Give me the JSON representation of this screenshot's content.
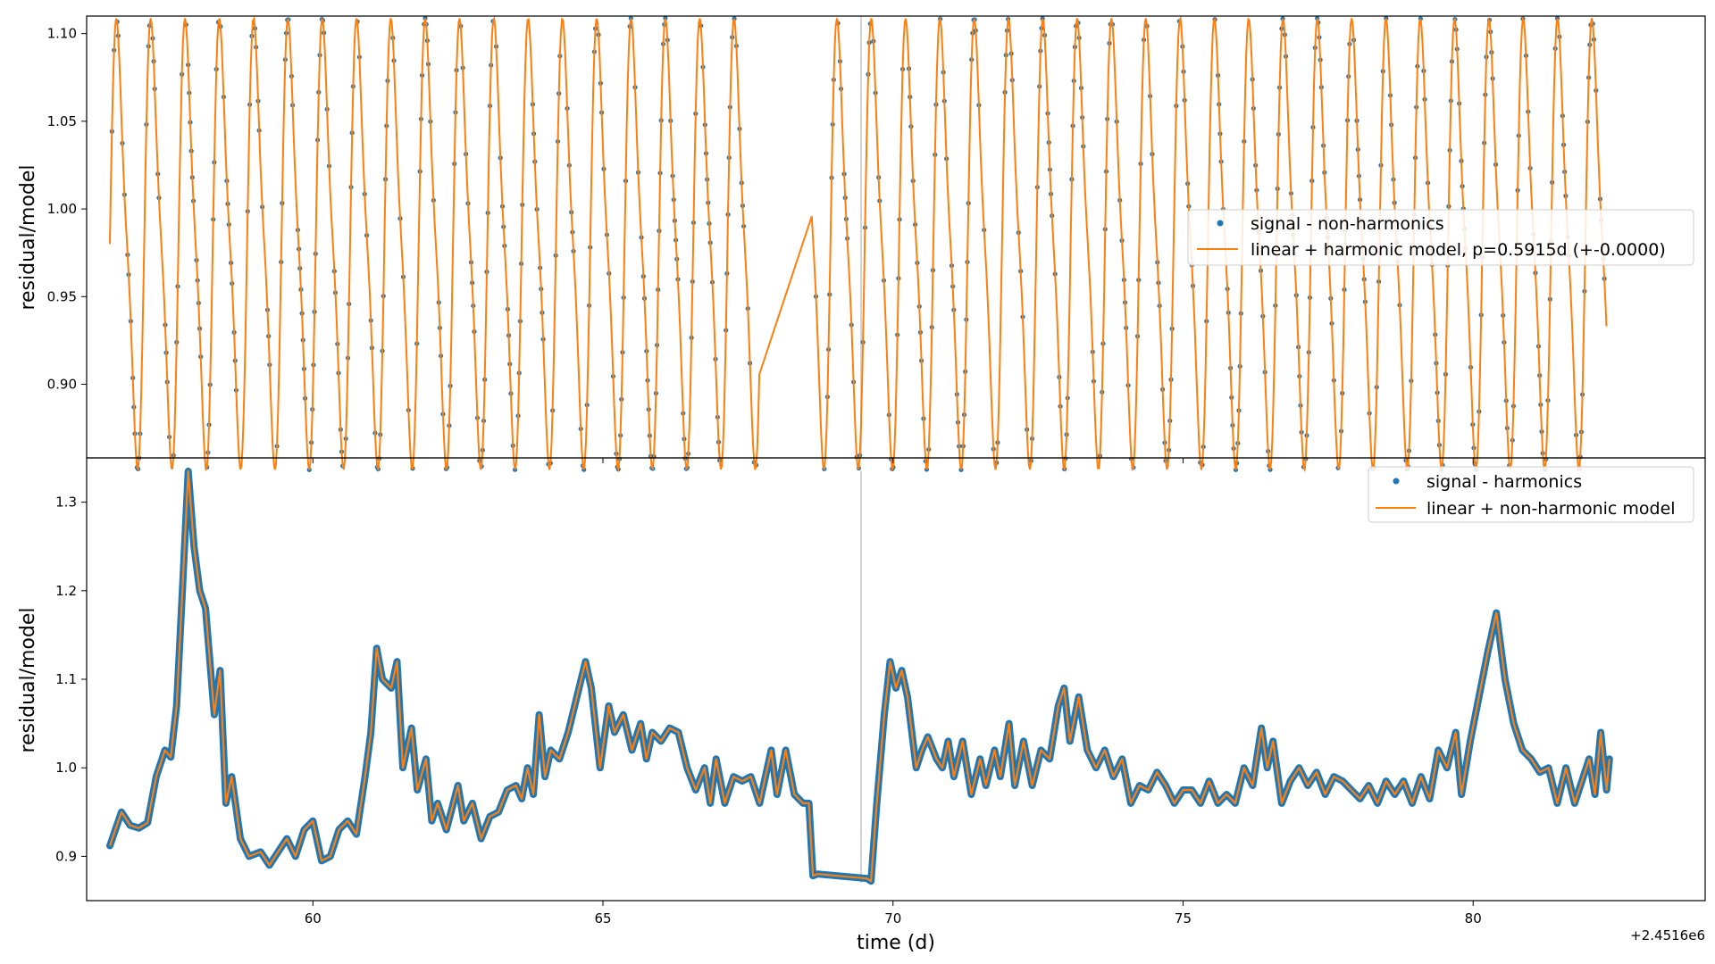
{
  "figure": {
    "offset_label": "+2.4516e6",
    "xlabel": "time (d)"
  },
  "colors": {
    "signal": "#1f77b4",
    "model": "#ff7f0e",
    "vline": "#d3d3d3",
    "axes": "#000000"
  },
  "chart_data": [
    {
      "type": "scatter",
      "panel": "top",
      "ylabel": "residual/model",
      "xlim": [
        56.1,
        84.0
      ],
      "ylim": [
        0.858,
        1.11
      ],
      "yticks": [
        0.9,
        0.95,
        1.0,
        1.05,
        1.1
      ],
      "ytick_labels": [
        "0.90",
        "0.95",
        "1.00",
        "1.05",
        "1.10"
      ],
      "xticks": [
        60,
        65,
        70,
        75,
        80
      ],
      "show_xtick_labels": false,
      "grid": false,
      "legend_position": "center-right",
      "vline_x": 69.45,
      "segments": [
        [
          56.5,
          67.7
        ],
        [
          68.6,
          82.3
        ]
      ],
      "period": 0.5915,
      "mean": 0.98,
      "amplitude": 0.12,
      "series": [
        {
          "name": "signal - non-harmonics",
          "kind": "markers"
        },
        {
          "name": "linear + harmonic model, p=0.5915d (+-0.0000)",
          "kind": "line"
        }
      ]
    },
    {
      "type": "line",
      "panel": "bottom",
      "ylabel": "residual/model",
      "xlim": [
        56.1,
        84.0
      ],
      "ylim": [
        0.85,
        1.35
      ],
      "yticks": [
        0.9,
        1.0,
        1.1,
        1.2,
        1.3
      ],
      "ytick_labels": [
        "0.9",
        "1.0",
        "1.1",
        "1.2",
        "1.3"
      ],
      "xticks": [
        60,
        65,
        70,
        75,
        80
      ],
      "xtick_labels": [
        "60",
        "65",
        "70",
        "75",
        "80"
      ],
      "grid": false,
      "legend_position": "top-right",
      "vline_x": 69.45,
      "series": [
        {
          "name": "signal - harmonics",
          "kind": "markers"
        },
        {
          "name": "linear + non-harmonic model",
          "kind": "line"
        }
      ],
      "points": [
        [
          56.5,
          0.912
        ],
        [
          56.7,
          0.95
        ],
        [
          56.85,
          0.935
        ],
        [
          57.0,
          0.932
        ],
        [
          57.15,
          0.938
        ],
        [
          57.3,
          0.99
        ],
        [
          57.45,
          1.02
        ],
        [
          57.55,
          1.012
        ],
        [
          57.65,
          1.07
        ],
        [
          57.75,
          1.2
        ],
        [
          57.85,
          1.335
        ],
        [
          57.95,
          1.25
        ],
        [
          58.05,
          1.2
        ],
        [
          58.15,
          1.18
        ],
        [
          58.3,
          1.06
        ],
        [
          58.4,
          1.11
        ],
        [
          58.5,
          0.96
        ],
        [
          58.6,
          0.99
        ],
        [
          58.75,
          0.92
        ],
        [
          58.9,
          0.9
        ],
        [
          59.1,
          0.905
        ],
        [
          59.25,
          0.89
        ],
        [
          59.4,
          0.905
        ],
        [
          59.55,
          0.92
        ],
        [
          59.7,
          0.9
        ],
        [
          59.85,
          0.93
        ],
        [
          60.0,
          0.94
        ],
        [
          60.15,
          0.895
        ],
        [
          60.3,
          0.9
        ],
        [
          60.45,
          0.93
        ],
        [
          60.6,
          0.94
        ],
        [
          60.75,
          0.925
        ],
        [
          60.9,
          0.99
        ],
        [
          61.0,
          1.04
        ],
        [
          61.1,
          1.135
        ],
        [
          61.2,
          1.1
        ],
        [
          61.35,
          1.09
        ],
        [
          61.45,
          1.12
        ],
        [
          61.55,
          1.0
        ],
        [
          61.7,
          1.045
        ],
        [
          61.8,
          0.975
        ],
        [
          61.95,
          1.01
        ],
        [
          62.05,
          0.94
        ],
        [
          62.15,
          0.96
        ],
        [
          62.3,
          0.93
        ],
        [
          62.5,
          0.98
        ],
        [
          62.6,
          0.94
        ],
        [
          62.75,
          0.96
        ],
        [
          62.9,
          0.92
        ],
        [
          63.05,
          0.945
        ],
        [
          63.2,
          0.95
        ],
        [
          63.35,
          0.975
        ],
        [
          63.5,
          0.98
        ],
        [
          63.6,
          0.965
        ],
        [
          63.7,
          1.0
        ],
        [
          63.8,
          0.97
        ],
        [
          63.9,
          1.06
        ],
        [
          64.0,
          0.99
        ],
        [
          64.1,
          1.02
        ],
        [
          64.25,
          1.01
        ],
        [
          64.4,
          1.04
        ],
        [
          64.55,
          1.08
        ],
        [
          64.7,
          1.12
        ],
        [
          64.8,
          1.09
        ],
        [
          64.95,
          1.0
        ],
        [
          65.1,
          1.07
        ],
        [
          65.2,
          1.04
        ],
        [
          65.35,
          1.06
        ],
        [
          65.5,
          1.02
        ],
        [
          65.65,
          1.05
        ],
        [
          65.75,
          1.01
        ],
        [
          65.85,
          1.04
        ],
        [
          66.0,
          1.03
        ],
        [
          66.15,
          1.045
        ],
        [
          66.3,
          1.04
        ],
        [
          66.45,
          1.0
        ],
        [
          66.6,
          0.975
        ],
        [
          66.75,
          1.0
        ],
        [
          66.85,
          0.96
        ],
        [
          66.95,
          1.01
        ],
        [
          67.1,
          0.96
        ],
        [
          67.25,
          0.99
        ],
        [
          67.4,
          0.985
        ],
        [
          67.55,
          0.99
        ],
        [
          67.7,
          0.96
        ],
        [
          67.9,
          1.02
        ],
        [
          68.0,
          0.97
        ],
        [
          68.15,
          1.02
        ],
        [
          68.3,
          0.97
        ],
        [
          68.45,
          0.96
        ],
        [
          68.55,
          0.96
        ],
        [
          68.7,
          0.88
        ],
        [
          68.62,
          0.878
        ],
        [
          69.55,
          0.875
        ],
        [
          69.62,
          0.872
        ],
        [
          69.72,
          0.96
        ],
        [
          69.85,
          1.06
        ],
        [
          69.95,
          1.12
        ],
        [
          70.05,
          1.09
        ],
        [
          70.15,
          1.11
        ],
        [
          70.25,
          1.08
        ],
        [
          70.4,
          1.0
        ],
        [
          70.5,
          1.02
        ],
        [
          70.6,
          1.035
        ],
        [
          70.75,
          1.01
        ],
        [
          70.85,
          1.0
        ],
        [
          70.95,
          1.03
        ],
        [
          71.05,
          0.99
        ],
        [
          71.2,
          1.03
        ],
        [
          71.35,
          0.97
        ],
        [
          71.5,
          1.01
        ],
        [
          71.6,
          0.98
        ],
        [
          71.75,
          1.02
        ],
        [
          71.85,
          0.99
        ],
        [
          72.0,
          1.05
        ],
        [
          72.1,
          0.98
        ],
        [
          72.25,
          1.03
        ],
        [
          72.4,
          0.98
        ],
        [
          72.55,
          1.02
        ],
        [
          72.7,
          1.01
        ],
        [
          72.85,
          1.07
        ],
        [
          72.95,
          1.09
        ],
        [
          73.05,
          1.03
        ],
        [
          73.2,
          1.08
        ],
        [
          73.35,
          1.02
        ],
        [
          73.5,
          1.0
        ],
        [
          73.65,
          1.02
        ],
        [
          73.8,
          0.99
        ],
        [
          73.95,
          1.01
        ],
        [
          74.1,
          0.96
        ],
        [
          74.25,
          0.98
        ],
        [
          74.4,
          0.975
        ],
        [
          74.55,
          0.995
        ],
        [
          74.7,
          0.98
        ],
        [
          74.85,
          0.96
        ],
        [
          75.0,
          0.975
        ],
        [
          75.15,
          0.975
        ],
        [
          75.3,
          0.96
        ],
        [
          75.45,
          0.985
        ],
        [
          75.6,
          0.96
        ],
        [
          75.75,
          0.97
        ],
        [
          75.9,
          0.96
        ],
        [
          76.05,
          1.0
        ],
        [
          76.2,
          0.98
        ],
        [
          76.35,
          1.045
        ],
        [
          76.45,
          1.0
        ],
        [
          76.55,
          1.03
        ],
        [
          76.7,
          0.96
        ],
        [
          76.85,
          0.985
        ],
        [
          77.0,
          1.0
        ],
        [
          77.15,
          0.98
        ],
        [
          77.3,
          0.995
        ],
        [
          77.45,
          0.97
        ],
        [
          77.6,
          0.99
        ],
        [
          77.75,
          0.985
        ],
        [
          77.9,
          0.975
        ],
        [
          78.05,
          0.965
        ],
        [
          78.2,
          0.98
        ],
        [
          78.35,
          0.96
        ],
        [
          78.5,
          0.985
        ],
        [
          78.65,
          0.97
        ],
        [
          78.8,
          0.985
        ],
        [
          78.95,
          0.96
        ],
        [
          79.1,
          0.99
        ],
        [
          79.25,
          0.965
        ],
        [
          79.4,
          1.02
        ],
        [
          79.55,
          1.0
        ],
        [
          79.7,
          1.04
        ],
        [
          79.8,
          0.97
        ],
        [
          79.95,
          1.03
        ],
        [
          80.1,
          1.08
        ],
        [
          80.25,
          1.13
        ],
        [
          80.4,
          1.175
        ],
        [
          80.55,
          1.1
        ],
        [
          80.7,
          1.05
        ],
        [
          80.85,
          1.02
        ],
        [
          81.0,
          1.01
        ],
        [
          81.15,
          0.995
        ],
        [
          81.3,
          1.0
        ],
        [
          81.45,
          0.96
        ],
        [
          81.6,
          1.0
        ],
        [
          81.75,
          0.96
        ],
        [
          81.9,
          0.99
        ],
        [
          82.0,
          1.01
        ],
        [
          82.1,
          0.97
        ],
        [
          82.2,
          1.04
        ],
        [
          82.3,
          0.975
        ],
        [
          82.35,
          1.01
        ]
      ]
    }
  ]
}
